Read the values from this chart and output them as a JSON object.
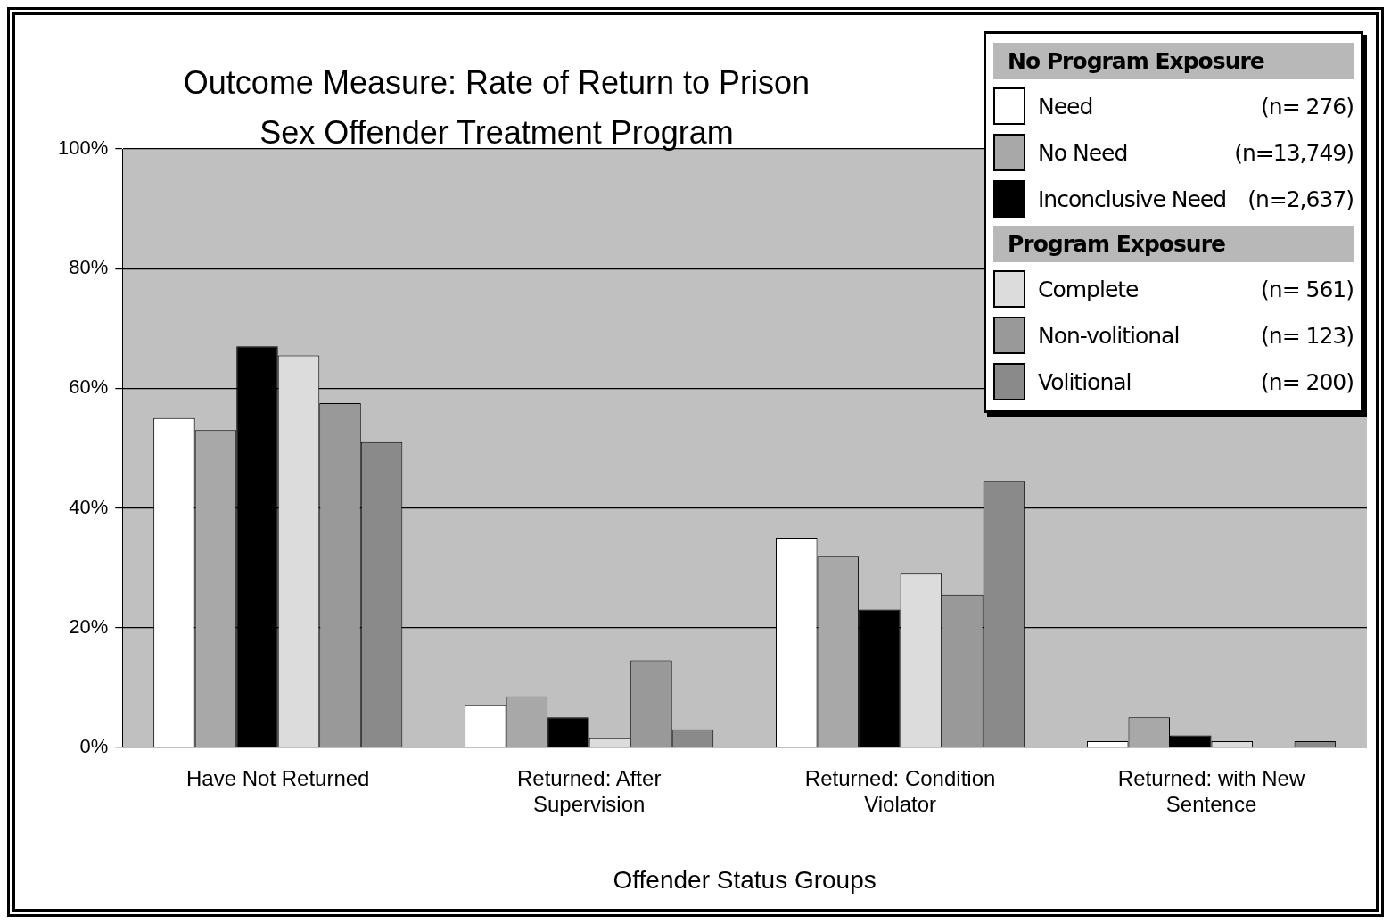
{
  "chart_data": {
    "type": "bar",
    "title": "Outcome Measure: Rate of Return to Prison",
    "subtitle": "Sex Offender Treatment Program",
    "xlabel": "Offender Status Groups",
    "categories": [
      "Have Not Returned",
      "Returned: After Supervision",
      "Returned: Condition Violator",
      "Returned: with New Sentence"
    ],
    "series": [
      {
        "name": "Need (n= 276)",
        "color": "#ffffff",
        "values": [
          55,
          7,
          35,
          1
        ]
      },
      {
        "name": "No Need (n=13,749)",
        "color": "#a8a8a8",
        "values": [
          53,
          8.5,
          32,
          5
        ]
      },
      {
        "name": "Inconclusive Need (n=2,637)",
        "color": "#000000",
        "values": [
          67,
          5,
          23,
          2
        ]
      },
      {
        "name": "Complete (n= 561)",
        "color": "#dcdcdc",
        "values": [
          65.5,
          1.5,
          29,
          1
        ]
      },
      {
        "name": "Non-volitional (n= 123)",
        "color": "#999999",
        "values": [
          57.5,
          14.5,
          25.5,
          0
        ]
      },
      {
        "name": "Volitional (n= 200)",
        "color": "#8a8a8a",
        "values": [
          51,
          3,
          44.5,
          1
        ]
      }
    ],
    "annotations": [
      "No Program Exposure",
      "Program Exposure"
    ],
    "ylim": [
      0,
      100
    ],
    "yticks": [
      {
        "value": 0,
        "label": "0%"
      },
      {
        "value": 20,
        "label": "20%"
      },
      {
        "value": 40,
        "label": "40%"
      },
      {
        "value": 60,
        "label": "60%"
      },
      {
        "value": 80,
        "label": "80%"
      },
      {
        "value": 100,
        "label": "100%"
      }
    ],
    "grid": "y",
    "legend": "top right"
  }
}
